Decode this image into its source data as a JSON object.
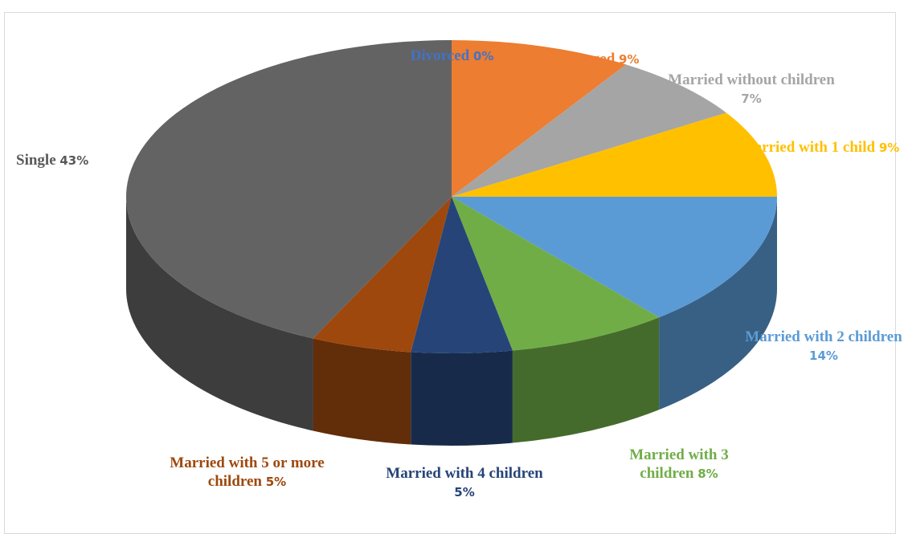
{
  "chart_data": {
    "type": "pie3d",
    "categories": [
      "Divorced",
      "Engaged",
      "Married without children",
      "Married with 1 child",
      "Married with 2 children",
      "Married with 3 children",
      "Married with 4 children",
      "Married with 5 or more children",
      "Single"
    ],
    "values": [
      0,
      9,
      7,
      9,
      14,
      8,
      5,
      5,
      43
    ],
    "value_labels": [
      "0%",
      "9%",
      "7%",
      "9%",
      "14%",
      "8%",
      "5%",
      "5%",
      "43%"
    ],
    "colors": [
      "#4472c4",
      "#ed7d31",
      "#a5a5a5",
      "#ffc000",
      "#5b9bd5",
      "#70ad47",
      "#264478",
      "#9e480e",
      "#636363"
    ]
  }
}
